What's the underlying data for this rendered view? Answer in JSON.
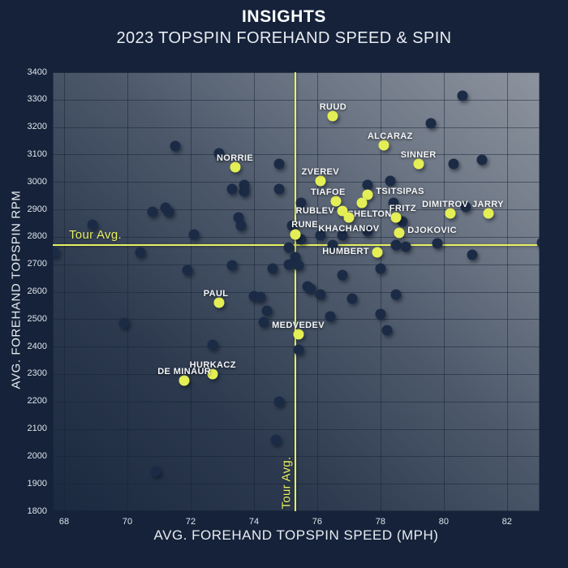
{
  "header": {
    "title": "INSIGHTS",
    "subtitle": "2023 TOPSPIN FOREHAND SPEED & SPIN"
  },
  "colors": {
    "background": "#15223a",
    "accent_yellow": "#e4ef55",
    "dot_navy": "#1c2b45",
    "text": "#f4f6f8",
    "plot_gradient_dark": "#1b2940",
    "plot_gradient_light": "#8d949f"
  },
  "chart_data": {
    "type": "scatter",
    "title": "2023 TOPSPIN FOREHAND SPEED & SPIN",
    "xlabel": "AVG. FOREHAND TOPSPIN SPEED (MPH)",
    "ylabel": "AVG. FOREHAND TOPSPIN RPM",
    "xlim": [
      67.64,
      83.03
    ],
    "ylim": [
      1800,
      3400
    ],
    "x_ticks": [
      68,
      70,
      72,
      74,
      76,
      78,
      80,
      82
    ],
    "y_ticks": [
      1800,
      1900,
      2000,
      2100,
      2200,
      2300,
      2400,
      2500,
      2600,
      2700,
      2800,
      2900,
      3000,
      3100,
      3200,
      3300,
      3400
    ],
    "grid": true,
    "tour_avg": {
      "label": "Tour Avg.",
      "speed_mph": 75.3,
      "spin_rpm": 2770
    },
    "players": [
      {
        "name": "RUUD",
        "speed_mph": 76.5,
        "spin_rpm": 3240,
        "label": "above"
      },
      {
        "name": "ALCARAZ",
        "speed_mph": 78.1,
        "spin_rpm": 3135,
        "label": "above",
        "dx": 8
      },
      {
        "name": "SINNER",
        "speed_mph": 79.2,
        "spin_rpm": 3065,
        "label": "above"
      },
      {
        "name": "NORRIE",
        "speed_mph": 73.4,
        "spin_rpm": 3055,
        "label": "above"
      },
      {
        "name": "ZVEREV",
        "speed_mph": 76.1,
        "spin_rpm": 3005,
        "label": "above"
      },
      {
        "name": "TSITSIPAS",
        "speed_mph": 77.6,
        "spin_rpm": 2955,
        "label": "right"
      },
      {
        "name": "TIAFOE",
        "speed_mph": 76.6,
        "spin_rpm": 2930,
        "label": "above",
        "dx": -10
      },
      {
        "name": "SHELTON",
        "speed_mph": 77.4,
        "spin_rpm": 2925,
        "label": "below",
        "dx": 10
      },
      {
        "name": "RUBLEV",
        "speed_mph": 76.8,
        "spin_rpm": 2895,
        "label": "left"
      },
      {
        "name": "DIMITROV",
        "speed_mph": 80.2,
        "spin_rpm": 2885,
        "label": "above",
        "dx": -6
      },
      {
        "name": "JARRY",
        "speed_mph": 81.4,
        "spin_rpm": 2885,
        "label": "above"
      },
      {
        "name": "KHACHANOV",
        "speed_mph": 77.0,
        "spin_rpm": 2870,
        "label": "below"
      },
      {
        "name": "FRITZ",
        "speed_mph": 78.5,
        "spin_rpm": 2870,
        "label": "above",
        "dx": 8
      },
      {
        "name": "DJOKOVIC",
        "speed_mph": 78.6,
        "spin_rpm": 2815,
        "label": "right"
      },
      {
        "name": "RUNE",
        "speed_mph": 75.3,
        "spin_rpm": 2810,
        "label": "above",
        "dx": 12
      },
      {
        "name": "HUMBERT",
        "speed_mph": 77.9,
        "spin_rpm": 2745,
        "label": "left"
      },
      {
        "name": "PAUL",
        "speed_mph": 72.9,
        "spin_rpm": 2560,
        "label": "above",
        "dx": -4
      },
      {
        "name": "MEDVEDEV",
        "speed_mph": 75.4,
        "spin_rpm": 2445,
        "label": "above"
      },
      {
        "name": "HURKACZ",
        "speed_mph": 72.7,
        "spin_rpm": 2300,
        "label": "above"
      },
      {
        "name": "DE MINAUR",
        "speed_mph": 71.8,
        "spin_rpm": 2275,
        "label": "above"
      }
    ],
    "unlabeled_points": [
      [
        80.6,
        3315
      ],
      [
        79.6,
        3215
      ],
      [
        71.5,
        3130
      ],
      [
        72.9,
        3105
      ],
      [
        74.8,
        3065
      ],
      [
        80.3,
        3065
      ],
      [
        81.2,
        3080
      ],
      [
        78.3,
        3005
      ],
      [
        77.6,
        2990
      ],
      [
        73.7,
        2990
      ],
      [
        73.7,
        2965
      ],
      [
        73.3,
        2975
      ],
      [
        74.8,
        2975
      ],
      [
        75.5,
        2925
      ],
      [
        78.4,
        2925
      ],
      [
        71.2,
        2905
      ],
      [
        70.8,
        2890
      ],
      [
        71.3,
        2890
      ],
      [
        80.7,
        2910
      ],
      [
        73.5,
        2870
      ],
      [
        73.6,
        2840
      ],
      [
        68.9,
        2845
      ],
      [
        72.1,
        2810
      ],
      [
        75.2,
        2840
      ],
      [
        75.5,
        2790
      ],
      [
        76.1,
        2805
      ],
      [
        76.5,
        2770
      ],
      [
        76.8,
        2805
      ],
      [
        77.6,
        2820
      ],
      [
        78.7,
        2855
      ],
      [
        78.5,
        2770
      ],
      [
        78.8,
        2765
      ],
      [
        79.8,
        2775
      ],
      [
        80.9,
        2735
      ],
      [
        83.1,
        2780
      ],
      [
        67.7,
        2745
      ],
      [
        70.4,
        2745
      ],
      [
        75.1,
        2760
      ],
      [
        75.3,
        2725
      ],
      [
        75.1,
        2700
      ],
      [
        75.4,
        2695
      ],
      [
        74.6,
        2685
      ],
      [
        73.3,
        2695
      ],
      [
        71.9,
        2680
      ],
      [
        78.0,
        2685
      ],
      [
        76.8,
        2660
      ],
      [
        75.7,
        2620
      ],
      [
        75.8,
        2610
      ],
      [
        76.1,
        2590
      ],
      [
        77.1,
        2575
      ],
      [
        78.5,
        2590
      ],
      [
        74.0,
        2585
      ],
      [
        74.2,
        2580
      ],
      [
        74.4,
        2530
      ],
      [
        69.9,
        2485
      ],
      [
        74.3,
        2490
      ],
      [
        76.4,
        2510
      ],
      [
        78.0,
        2520
      ],
      [
        78.2,
        2460
      ],
      [
        72.7,
        2405
      ],
      [
        75.4,
        2390
      ],
      [
        74.8,
        2200
      ],
      [
        74.7,
        2060
      ],
      [
        70.9,
        1945
      ]
    ]
  }
}
